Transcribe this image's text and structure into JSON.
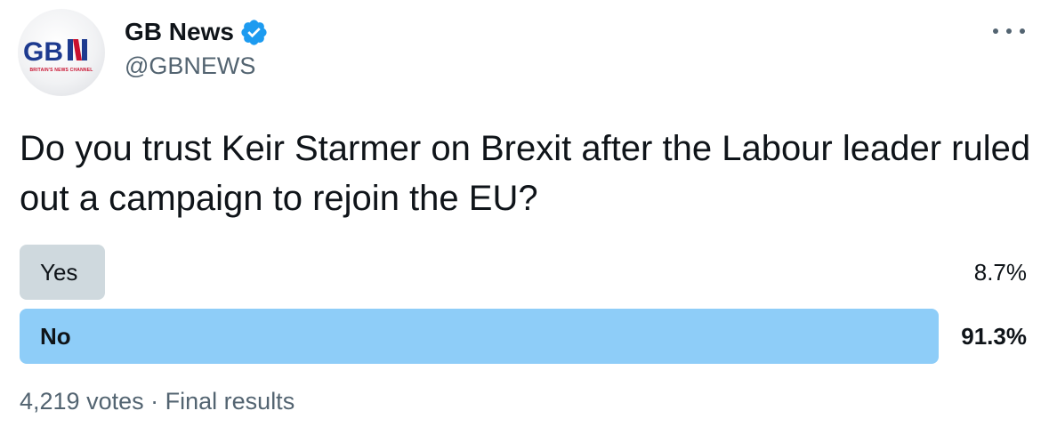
{
  "account": {
    "display_name": "GB News",
    "handle": "@GBNEWS",
    "verified": true,
    "avatar_logo_text": "GBN",
    "avatar_logo_subtext": "BRITAIN'S NEWS CHANNEL"
  },
  "more_menu_icon": "ellipsis-icon",
  "tweet": {
    "text": "Do you trust Keir Starmer on Brexit after the Labour leader ruled out a campaign to rejoin the EU?"
  },
  "poll": {
    "options": [
      {
        "label": "Yes",
        "percent": "8.7%",
        "fraction": 0.087,
        "winner": false
      },
      {
        "label": "No",
        "percent": "91.3%",
        "fraction": 0.913,
        "winner": true
      }
    ],
    "votes": "4,219 votes",
    "separator": "·",
    "status": "Final results"
  },
  "colors": {
    "winner_bar": "#8ecdf8",
    "loser_bar": "#cfd9de",
    "verified_blue": "#1d9bf0",
    "secondary_text": "#536471",
    "logo_blue": "#1d3a8f",
    "logo_red": "#c8102e"
  }
}
